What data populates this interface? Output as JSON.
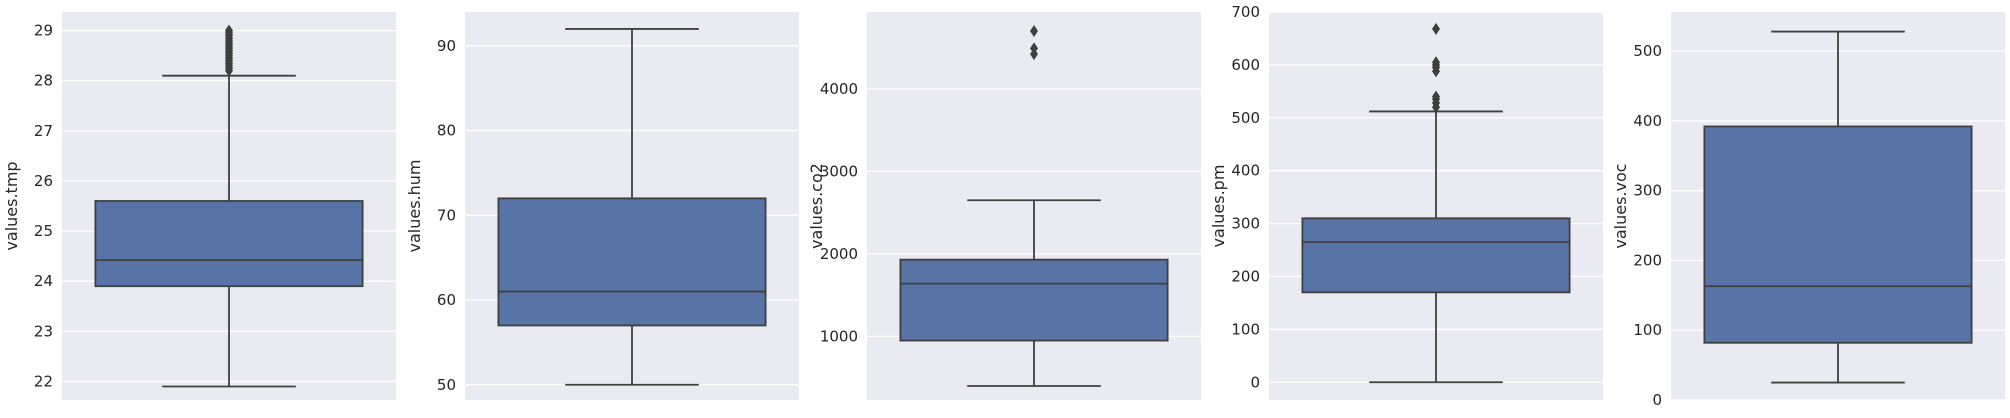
{
  "chart_data": [
    {
      "type": "box",
      "ylabel": "values.tmp",
      "ylim": [
        21.63,
        29.37
      ],
      "yticks": [
        22,
        23,
        24,
        25,
        26,
        27,
        28,
        29
      ],
      "grid": true,
      "box": {
        "whisker_low": 21.9,
        "q1": 23.9,
        "median": 24.42,
        "q3": 25.6,
        "whisker_high": 28.1
      },
      "outliers": [
        28.2,
        28.25,
        28.3,
        28.35,
        28.4,
        28.45,
        28.5,
        28.55,
        28.6,
        28.65,
        28.7,
        28.75,
        28.8,
        28.85,
        28.9,
        28.95,
        29.0
      ]
    },
    {
      "type": "box",
      "ylabel": "values.hum",
      "ylim": [
        48.2,
        94.0
      ],
      "yticks": [
        50,
        60,
        70,
        80,
        90
      ],
      "grid": true,
      "box": {
        "whisker_low": 50,
        "q1": 57,
        "median": 61,
        "q3": 72,
        "whisker_high": 92
      },
      "outliers": []
    },
    {
      "type": "box",
      "ylabel": "values.co2",
      "ylim": [
        230,
        4930
      ],
      "yticks": [
        1000,
        2000,
        3000,
        4000
      ],
      "grid": true,
      "box": {
        "whisker_low": 400,
        "q1": 950,
        "median": 1640,
        "q3": 1930,
        "whisker_high": 2650
      },
      "outliers": [
        4420,
        4490,
        4700
      ]
    },
    {
      "type": "box",
      "ylabel": "values.pm",
      "ylim": [
        -33.5,
        700
      ],
      "yticks": [
        0,
        100,
        200,
        300,
        400,
        500,
        600,
        700
      ],
      "grid": true,
      "box": {
        "whisker_low": 0,
        "q1": 170,
        "median": 265,
        "q3": 310,
        "whisker_high": 512
      },
      "outliers": [
        520,
        528,
        535,
        540,
        588,
        595,
        600,
        605,
        668
      ]
    },
    {
      "type": "box",
      "ylabel": "values.voc",
      "ylim": [
        0,
        556
      ],
      "yticks": [
        0,
        100,
        200,
        300,
        400,
        500
      ],
      "grid": true,
      "box": {
        "whisker_low": 25,
        "q1": 82,
        "median": 163,
        "q3": 392,
        "whisker_high": 528
      },
      "outliers": []
    }
  ],
  "colors": {
    "box_fill": "#5874a6",
    "plot_background": "#eaeaf2",
    "grid": "#ffffff",
    "line": "#3f3f3f",
    "text": "#262626"
  }
}
